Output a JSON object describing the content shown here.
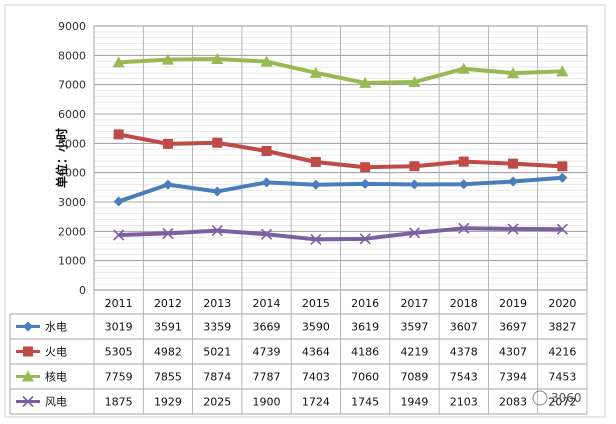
{
  "chart_data": {
    "type": "line",
    "title": "",
    "ylabel": "单位：小时",
    "xlabel": "",
    "ylim": [
      0,
      9000
    ],
    "yticks": [
      "0",
      "1000",
      "2000",
      "3000",
      "4000",
      "5000",
      "6000",
      "7000",
      "8000",
      "9000"
    ],
    "categories": [
      "2011",
      "2012",
      "2013",
      "2014",
      "2015",
      "2016",
      "2017",
      "2018",
      "2019",
      "2020"
    ],
    "grid": true,
    "legend": "data-table",
    "series": [
      {
        "name": "水电",
        "color": "#4a7ebb",
        "marker": "diamond",
        "values": [
          3019,
          3591,
          3359,
          3669,
          3590,
          3619,
          3597,
          3607,
          3697,
          3827
        ]
      },
      {
        "name": "火电",
        "color": "#be4b48",
        "marker": "square",
        "values": [
          5305,
          4982,
          5021,
          4739,
          4364,
          4186,
          4219,
          4378,
          4307,
          4216
        ]
      },
      {
        "name": "核电",
        "color": "#98b954",
        "marker": "triangle",
        "values": [
          7759,
          7855,
          7874,
          7787,
          7403,
          7060,
          7089,
          7543,
          7394,
          7453
        ]
      },
      {
        "name": "风电",
        "color": "#7d60a0",
        "marker": "x",
        "values": [
          1875,
          1929,
          2025,
          1900,
          1724,
          1745,
          1949,
          2103,
          2083,
          2072
        ]
      }
    ]
  },
  "watermark": "3060"
}
